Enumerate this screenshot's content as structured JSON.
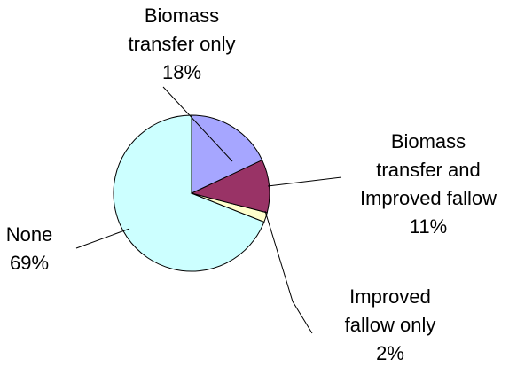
{
  "chart_data": {
    "type": "pie",
    "categories": [
      "Biomass transfer only",
      "Biomass transfer and Improved fallow",
      "Improved fallow only",
      "None"
    ],
    "values": [
      18,
      11,
      2,
      69
    ],
    "value_labels": [
      "18%",
      "11%",
      "2%",
      "69%"
    ],
    "colors": [
      "#a6a6ff",
      "#993366",
      "#ffffcc",
      "#ccffff"
    ]
  }
}
